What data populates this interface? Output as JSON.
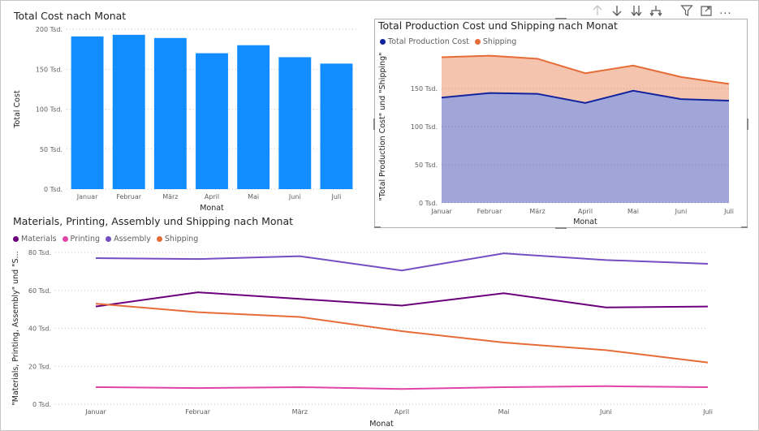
{
  "toolbar": {
    "icons": [
      "arrow-up-icon",
      "arrow-down-icon",
      "double-arrow-down-icon",
      "expand-hierarchy-icon",
      "filter-icon",
      "focus-mode-icon",
      "more-options-icon"
    ],
    "more_label": "..."
  },
  "colors": {
    "bar": "#118DFF",
    "total_production_cost": "#12239E",
    "shipping": "#E66C37",
    "materials": "#6B007B",
    "printing": "#E044A7",
    "assembly": "#744EC2",
    "axis_text": "#605e5c",
    "grid": "#c8c6c4"
  },
  "chart_data": [
    {
      "type": "bar",
      "title": "Total Cost nach Monat",
      "xlabel": "Monat",
      "ylabel": "Total Cost",
      "categories": [
        "Januar",
        "Februar",
        "März",
        "April",
        "Mai",
        "Juni",
        "Juli"
      ],
      "values": [
        191000,
        193000,
        189000,
        170000,
        180000,
        165000,
        157000
      ],
      "ylim": [
        0,
        200000
      ],
      "yticks": [
        0,
        50000,
        100000,
        150000,
        200000
      ],
      "ytick_labels": [
        "0 Tsd.",
        "50 Tsd.",
        "100 Tsd.",
        "150 Tsd.",
        "200 Tsd."
      ],
      "grid": true
    },
    {
      "type": "area",
      "stacked": true,
      "title": "Total Production Cost und Shipping nach Monat",
      "xlabel": "Monat",
      "ylabel": "\"Total Production Cost\" und \"Shipping\"",
      "categories": [
        "Januar",
        "Februar",
        "März",
        "April",
        "Mai",
        "Juni",
        "Juli"
      ],
      "series": [
        {
          "name": "Total Production Cost",
          "values": [
            138000,
            144000,
            143000,
            131000,
            147000,
            136000,
            134000
          ]
        },
        {
          "name": "Shipping",
          "values": [
            53000,
            49000,
            46000,
            39000,
            33000,
            29000,
            22000
          ]
        }
      ],
      "ylim": [
        0,
        200000
      ],
      "yticks": [
        0,
        50000,
        100000,
        150000
      ],
      "ytick_labels": [
        "0 Tsd.",
        "50 Tsd.",
        "100 Tsd.",
        "150 Tsd."
      ],
      "legend": "top-left",
      "grid": true
    },
    {
      "type": "line",
      "title": "Materials, Printing, Assembly und Shipping nach Monat",
      "xlabel": "Monat",
      "ylabel": "\"Materials, Printing, Assembly\" und \"S...",
      "categories": [
        "Januar",
        "Februar",
        "März",
        "April",
        "Mai",
        "Juni",
        "Juli"
      ],
      "series": [
        {
          "name": "Materials",
          "values": [
            51500,
            59000,
            55500,
            52000,
            58500,
            51000,
            51500
          ]
        },
        {
          "name": "Printing",
          "values": [
            9000,
            8500,
            9000,
            8000,
            9000,
            9500,
            9000
          ]
        },
        {
          "name": "Assembly",
          "values": [
            77000,
            76500,
            78000,
            70500,
            79500,
            76000,
            74000
          ]
        },
        {
          "name": "Shipping",
          "values": [
            53000,
            48500,
            46000,
            38500,
            32500,
            28500,
            22000
          ]
        }
      ],
      "ylim": [
        0,
        80000
      ],
      "yticks": [
        0,
        20000,
        40000,
        60000,
        80000
      ],
      "ytick_labels": [
        "0 Tsd.",
        "20 Tsd.",
        "40 Tsd.",
        "60 Tsd.",
        "80 Tsd."
      ],
      "legend": "top-left",
      "grid": true
    }
  ]
}
